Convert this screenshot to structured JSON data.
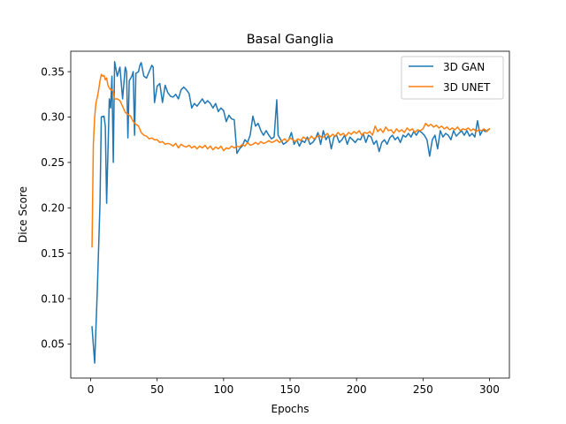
{
  "chart_data": {
    "type": "line",
    "title": "Basal Ganglia",
    "xlabel": "Epochs",
    "ylabel": "Dice Score",
    "xlim": [
      -15,
      315
    ],
    "ylim": [
      0.0125,
      0.3725
    ],
    "xticks": [
      0,
      50,
      100,
      150,
      200,
      250,
      300
    ],
    "yticks": [
      0.05,
      0.1,
      0.15,
      0.2,
      0.25,
      0.3,
      0.35
    ],
    "ytick_labels": [
      "0.05",
      "0.10",
      "0.15",
      "0.20",
      "0.25",
      "0.30",
      "0.35"
    ],
    "grid": false,
    "legend": "top-right",
    "series": [
      {
        "name": "3D GAN",
        "color": "#1f77b4",
        "points": [
          [
            1,
            0.069
          ],
          [
            3,
            0.029
          ],
          [
            5,
            0.11
          ],
          [
            7,
            0.205
          ],
          [
            8,
            0.3
          ],
          [
            10,
            0.301
          ],
          [
            11,
            0.29
          ],
          [
            12,
            0.205
          ],
          [
            14,
            0.32
          ],
          [
            15,
            0.31
          ],
          [
            16,
            0.345
          ],
          [
            17,
            0.25
          ],
          [
            18,
            0.361
          ],
          [
            20,
            0.345
          ],
          [
            22,
            0.355
          ],
          [
            24,
            0.32
          ],
          [
            26,
            0.355
          ],
          [
            27,
            0.35
          ],
          [
            28,
            0.277
          ],
          [
            29,
            0.34
          ],
          [
            31,
            0.345
          ],
          [
            32,
            0.35
          ],
          [
            33,
            0.28
          ],
          [
            34,
            0.348
          ],
          [
            36,
            0.35
          ],
          [
            37,
            0.357
          ],
          [
            38,
            0.36
          ],
          [
            40,
            0.345
          ],
          [
            42,
            0.343
          ],
          [
            44,
            0.35
          ],
          [
            46,
            0.357
          ],
          [
            47,
            0.355
          ],
          [
            48,
            0.316
          ],
          [
            50,
            0.334
          ],
          [
            52,
            0.337
          ],
          [
            54,
            0.316
          ],
          [
            56,
            0.335
          ],
          [
            58,
            0.327
          ],
          [
            60,
            0.323
          ],
          [
            62,
            0.322
          ],
          [
            64,
            0.325
          ],
          [
            66,
            0.32
          ],
          [
            68,
            0.33
          ],
          [
            70,
            0.333
          ],
          [
            72,
            0.33
          ],
          [
            74,
            0.326
          ],
          [
            76,
            0.31
          ],
          [
            78,
            0.315
          ],
          [
            80,
            0.312
          ],
          [
            82,
            0.316
          ],
          [
            84,
            0.32
          ],
          [
            86,
            0.315
          ],
          [
            88,
            0.318
          ],
          [
            90,
            0.315
          ],
          [
            92,
            0.31
          ],
          [
            94,
            0.315
          ],
          [
            96,
            0.306
          ],
          [
            98,
            0.31
          ],
          [
            100,
            0.307
          ],
          [
            102,
            0.295
          ],
          [
            104,
            0.302
          ],
          [
            106,
            0.298
          ],
          [
            108,
            0.297
          ],
          [
            110,
            0.26
          ],
          [
            112,
            0.265
          ],
          [
            114,
            0.268
          ],
          [
            116,
            0.275
          ],
          [
            118,
            0.272
          ],
          [
            120,
            0.28
          ],
          [
            122,
            0.301
          ],
          [
            124,
            0.29
          ],
          [
            126,
            0.293
          ],
          [
            128,
            0.285
          ],
          [
            130,
            0.28
          ],
          [
            132,
            0.285
          ],
          [
            134,
            0.28
          ],
          [
            136,
            0.276
          ],
          [
            138,
            0.278
          ],
          [
            140,
            0.319
          ],
          [
            141,
            0.28
          ],
          [
            143,
            0.275
          ],
          [
            145,
            0.27
          ],
          [
            147,
            0.272
          ],
          [
            149,
            0.275
          ],
          [
            151,
            0.283
          ],
          [
            153,
            0.27
          ],
          [
            155,
            0.275
          ],
          [
            157,
            0.268
          ],
          [
            159,
            0.274
          ],
          [
            161,
            0.272
          ],
          [
            163,
            0.278
          ],
          [
            165,
            0.27
          ],
          [
            167,
            0.272
          ],
          [
            169,
            0.276
          ],
          [
            171,
            0.283
          ],
          [
            173,
            0.27
          ],
          [
            175,
            0.285
          ],
          [
            177,
            0.275
          ],
          [
            179,
            0.28
          ],
          [
            181,
            0.265
          ],
          [
            183,
            0.278
          ],
          [
            185,
            0.28
          ],
          [
            187,
            0.272
          ],
          [
            189,
            0.275
          ],
          [
            191,
            0.28
          ],
          [
            193,
            0.27
          ],
          [
            195,
            0.278
          ],
          [
            197,
            0.275
          ],
          [
            199,
            0.272
          ],
          [
            201,
            0.276
          ],
          [
            203,
            0.275
          ],
          [
            205,
            0.282
          ],
          [
            207,
            0.272
          ],
          [
            209,
            0.28
          ],
          [
            211,
            0.278
          ],
          [
            213,
            0.27
          ],
          [
            215,
            0.274
          ],
          [
            217,
            0.262
          ],
          [
            219,
            0.272
          ],
          [
            221,
            0.275
          ],
          [
            223,
            0.27
          ],
          [
            225,
            0.277
          ],
          [
            227,
            0.28
          ],
          [
            229,
            0.275
          ],
          [
            231,
            0.278
          ],
          [
            233,
            0.272
          ],
          [
            235,
            0.28
          ],
          [
            237,
            0.278
          ],
          [
            239,
            0.282
          ],
          [
            241,
            0.278
          ],
          [
            243,
            0.284
          ],
          [
            245,
            0.28
          ],
          [
            247,
            0.285
          ],
          [
            249,
            0.283
          ],
          [
            251,
            0.28
          ],
          [
            253,
            0.275
          ],
          [
            255,
            0.257
          ],
          [
            257,
            0.275
          ],
          [
            259,
            0.28
          ],
          [
            261,
            0.265
          ],
          [
            263,
            0.285
          ],
          [
            265,
            0.278
          ],
          [
            267,
            0.282
          ],
          [
            269,
            0.28
          ],
          [
            271,
            0.275
          ],
          [
            273,
            0.285
          ],
          [
            275,
            0.279
          ],
          [
            277,
            0.282
          ],
          [
            279,
            0.285
          ],
          [
            281,
            0.28
          ],
          [
            283,
            0.285
          ],
          [
            285,
            0.279
          ],
          [
            287,
            0.282
          ],
          [
            289,
            0.278
          ],
          [
            291,
            0.296
          ],
          [
            293,
            0.28
          ],
          [
            295,
            0.286
          ],
          [
            297,
            0.284
          ],
          [
            299,
            0.286
          ],
          [
            300,
            0.287
          ]
        ]
      },
      {
        "name": "3D UNET",
        "color": "#ff7f0e",
        "points": [
          [
            1,
            0.157
          ],
          [
            2,
            0.27
          ],
          [
            3,
            0.3
          ],
          [
            4,
            0.316
          ],
          [
            5,
            0.322
          ],
          [
            6,
            0.33
          ],
          [
            7,
            0.34
          ],
          [
            8,
            0.347
          ],
          [
            9,
            0.345
          ],
          [
            10,
            0.346
          ],
          [
            11,
            0.341
          ],
          [
            12,
            0.343
          ],
          [
            13,
            0.335
          ],
          [
            14,
            0.332
          ],
          [
            15,
            0.33
          ],
          [
            16,
            0.33
          ],
          [
            17,
            0.328
          ],
          [
            18,
            0.32
          ],
          [
            20,
            0.32
          ],
          [
            22,
            0.318
          ],
          [
            24,
            0.312
          ],
          [
            26,
            0.305
          ],
          [
            28,
            0.303
          ],
          [
            30,
            0.301
          ],
          [
            32,
            0.295
          ],
          [
            34,
            0.292
          ],
          [
            36,
            0.29
          ],
          [
            38,
            0.283
          ],
          [
            40,
            0.28
          ],
          [
            42,
            0.279
          ],
          [
            44,
            0.276
          ],
          [
            46,
            0.277
          ],
          [
            48,
            0.275
          ],
          [
            50,
            0.275
          ],
          [
            52,
            0.272
          ],
          [
            54,
            0.273
          ],
          [
            56,
            0.27
          ],
          [
            58,
            0.271
          ],
          [
            60,
            0.27
          ],
          [
            62,
            0.268
          ],
          [
            64,
            0.271
          ],
          [
            66,
            0.266
          ],
          [
            68,
            0.27
          ],
          [
            70,
            0.268
          ],
          [
            72,
            0.267
          ],
          [
            74,
            0.269
          ],
          [
            76,
            0.266
          ],
          [
            78,
            0.268
          ],
          [
            80,
            0.265
          ],
          [
            82,
            0.268
          ],
          [
            84,
            0.266
          ],
          [
            86,
            0.269
          ],
          [
            88,
            0.265
          ],
          [
            90,
            0.268
          ],
          [
            92,
            0.264
          ],
          [
            94,
            0.267
          ],
          [
            96,
            0.265
          ],
          [
            98,
            0.268
          ],
          [
            100,
            0.263
          ],
          [
            102,
            0.266
          ],
          [
            104,
            0.265
          ],
          [
            106,
            0.268
          ],
          [
            108,
            0.266
          ],
          [
            110,
            0.268
          ],
          [
            112,
            0.267
          ],
          [
            114,
            0.27
          ],
          [
            116,
            0.268
          ],
          [
            118,
            0.272
          ],
          [
            120,
            0.269
          ],
          [
            122,
            0.27
          ],
          [
            124,
            0.272
          ],
          [
            126,
            0.27
          ],
          [
            128,
            0.273
          ],
          [
            130,
            0.271
          ],
          [
            132,
            0.272
          ],
          [
            134,
            0.274
          ],
          [
            136,
            0.272
          ],
          [
            138,
            0.273
          ],
          [
            140,
            0.275
          ],
          [
            142,
            0.272
          ],
          [
            144,
            0.274
          ],
          [
            146,
            0.276
          ],
          [
            148,
            0.273
          ],
          [
            150,
            0.277
          ],
          [
            152,
            0.275
          ],
          [
            154,
            0.273
          ],
          [
            156,
            0.276
          ],
          [
            158,
            0.274
          ],
          [
            160,
            0.278
          ],
          [
            162,
            0.276
          ],
          [
            164,
            0.275
          ],
          [
            166,
            0.279
          ],
          [
            168,
            0.276
          ],
          [
            170,
            0.278
          ],
          [
            172,
            0.28
          ],
          [
            174,
            0.277
          ],
          [
            176,
            0.279
          ],
          [
            178,
            0.282
          ],
          [
            180,
            0.278
          ],
          [
            182,
            0.281
          ],
          [
            184,
            0.279
          ],
          [
            186,
            0.283
          ],
          [
            188,
            0.28
          ],
          [
            190,
            0.282
          ],
          [
            192,
            0.279
          ],
          [
            194,
            0.283
          ],
          [
            196,
            0.281
          ],
          [
            198,
            0.284
          ],
          [
            200,
            0.282
          ],
          [
            202,
            0.285
          ],
          [
            204,
            0.28
          ],
          [
            206,
            0.283
          ],
          [
            208,
            0.282
          ],
          [
            210,
            0.284
          ],
          [
            212,
            0.28
          ],
          [
            214,
            0.29
          ],
          [
            216,
            0.284
          ],
          [
            218,
            0.287
          ],
          [
            220,
            0.283
          ],
          [
            222,
            0.289
          ],
          [
            224,
            0.285
          ],
          [
            226,
            0.286
          ],
          [
            228,
            0.282
          ],
          [
            230,
            0.287
          ],
          [
            232,
            0.284
          ],
          [
            234,
            0.286
          ],
          [
            236,
            0.283
          ],
          [
            238,
            0.288
          ],
          [
            240,
            0.285
          ],
          [
            242,
            0.287
          ],
          [
            244,
            0.283
          ],
          [
            246,
            0.286
          ],
          [
            248,
            0.285
          ],
          [
            250,
            0.287
          ],
          [
            252,
            0.293
          ],
          [
            254,
            0.29
          ],
          [
            256,
            0.292
          ],
          [
            258,
            0.289
          ],
          [
            260,
            0.291
          ],
          [
            262,
            0.288
          ],
          [
            264,
            0.29
          ],
          [
            266,
            0.287
          ],
          [
            268,
            0.289
          ],
          [
            270,
            0.286
          ],
          [
            272,
            0.288
          ],
          [
            274,
            0.286
          ],
          [
            276,
            0.289
          ],
          [
            278,
            0.285
          ],
          [
            280,
            0.287
          ],
          [
            282,
            0.286
          ],
          [
            284,
            0.288
          ],
          [
            286,
            0.285
          ],
          [
            288,
            0.287
          ],
          [
            290,
            0.284
          ],
          [
            292,
            0.286
          ],
          [
            294,
            0.285
          ],
          [
            296,
            0.287
          ],
          [
            298,
            0.284
          ],
          [
            300,
            0.287
          ]
        ]
      }
    ]
  }
}
